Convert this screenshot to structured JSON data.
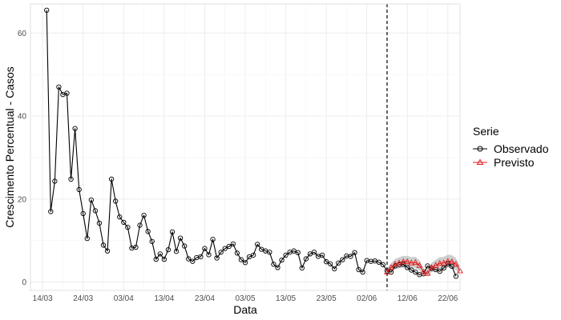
{
  "chart_data": {
    "type": "line",
    "xlabel": "Data",
    "ylabel": "Crescimento Percentual - Casos",
    "ylim": [
      -2,
      67
    ],
    "y_ticks": [
      0,
      20,
      40,
      60
    ],
    "x_ticks": [
      {
        "date": "2020-03-14",
        "label": "14/03"
      },
      {
        "date": "2020-03-24",
        "label": "24/03"
      },
      {
        "date": "2020-04-03",
        "label": "03/04"
      },
      {
        "date": "2020-04-13",
        "label": "13/04"
      },
      {
        "date": "2020-04-23",
        "label": "23/04"
      },
      {
        "date": "2020-05-03",
        "label": "03/05"
      },
      {
        "date": "2020-05-13",
        "label": "13/05"
      },
      {
        "date": "2020-05-23",
        "label": "23/05"
      },
      {
        "date": "2020-06-02",
        "label": "02/06"
      },
      {
        "date": "2020-06-12",
        "label": "12/06"
      },
      {
        "date": "2020-06-22",
        "label": "22/06"
      }
    ],
    "xlim": [
      "2020-03-11",
      "2020-06-25"
    ],
    "grid": true,
    "vline_date": "2020-06-07",
    "legend": {
      "title": "Serie",
      "position": "right"
    },
    "series": [
      {
        "name": "Observado",
        "color": "#000000",
        "marker": "circle",
        "start_date": "2020-03-15",
        "values": [
          65.5,
          17,
          24.3,
          47,
          45.2,
          45.5,
          24.8,
          37,
          22.3,
          16.5,
          10.5,
          19.8,
          17.2,
          14.2,
          8.9,
          7.5,
          24.8,
          19.5,
          15.7,
          14.4,
          13.2,
          8.2,
          8.4,
          13.7,
          16.1,
          12.2,
          9.8,
          5.5,
          6.8,
          5.5,
          7.8,
          12.1,
          7.4,
          10.6,
          8.7,
          5.6,
          5,
          5.9,
          6.1,
          8.1,
          6.6,
          10.3,
          5.8,
          7.2,
          8.1,
          8.6,
          9.2,
          7,
          5.4,
          4.7,
          6.1,
          6.5,
          9.1,
          7.9,
          7.5,
          7.2,
          4.3,
          3.5,
          5.3,
          6.5,
          7.2,
          7.5,
          7.1,
          3.4,
          5.6,
          6.8,
          7.2,
          6.2,
          6.5,
          4.9,
          4.4,
          3.2,
          4.6,
          5.4,
          6.3,
          6.2,
          7.1,
          3,
          2.4,
          5.2,
          5,
          5.1,
          4.8,
          4.2,
          2.7,
          2.4,
          3.9,
          4.2,
          4.3,
          3.5,
          2.9,
          2.4,
          1.8,
          2,
          3.9,
          3.3,
          3,
          2.6,
          3.4,
          4.4,
          3.8,
          1.4
        ]
      },
      {
        "name": "Previsto",
        "color": "#e41a1c",
        "marker": "triangle",
        "start_date": "2020-06-07",
        "values": [
          2.4,
          3.5,
          4.3,
          4.6,
          4.9,
          4.9,
          4.6,
          4.7,
          4,
          2.4,
          2.1,
          3.5,
          4,
          4.5,
          4.6,
          5,
          4.9,
          4.3,
          2.7
        ],
        "lower": [
          1.5,
          2.5,
          3.1,
          3.3,
          3.5,
          3.5,
          3.3,
          3.3,
          2.8,
          1.6,
          1.4,
          2.4,
          2.8,
          3.1,
          3.2,
          3.5,
          3.4,
          2.9,
          1.8
        ],
        "upper": [
          3.3,
          4.6,
          5.6,
          6,
          6.3,
          6.3,
          6,
          6.1,
          5.3,
          3.3,
          2.9,
          4.7,
          5.4,
          6,
          6.1,
          6.6,
          6.5,
          5.8,
          3.6
        ]
      }
    ]
  }
}
